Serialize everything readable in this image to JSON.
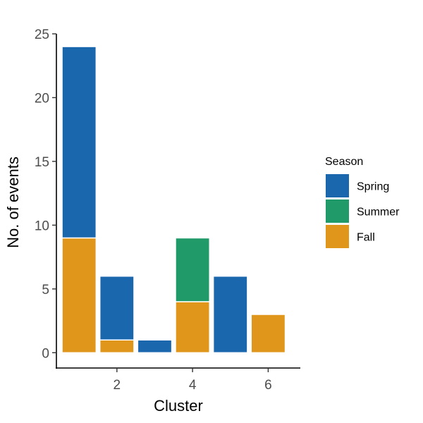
{
  "chart_data": {
    "type": "bar",
    "stacked": true,
    "x": [
      1,
      2,
      3,
      4,
      5,
      6
    ],
    "series": [
      {
        "name": "Fall",
        "color": "#E0961A",
        "values": [
          9,
          1,
          0,
          4,
          0,
          3
        ]
      },
      {
        "name": "Summer",
        "color": "#219A6A",
        "values": [
          0,
          0,
          0,
          5,
          0,
          0
        ]
      },
      {
        "name": "Spring",
        "color": "#1B67AE",
        "values": [
          15,
          5,
          1,
          0,
          6,
          0
        ]
      }
    ],
    "xlabel": "Cluster",
    "ylabel": "No. of events",
    "x_ticks": [
      2,
      4,
      6
    ],
    "y_ticks": [
      0,
      5,
      10,
      15,
      20,
      25
    ],
    "xlim": [
      0.4,
      6.85
    ],
    "ylim": [
      -1.2,
      25
    ],
    "grid": false,
    "legend": {
      "title": "Season",
      "placement": "right",
      "entries": [
        {
          "label": "Spring",
          "color": "#1B67AE"
        },
        {
          "label": "Summer",
          "color": "#219A6A"
        },
        {
          "label": "Fall",
          "color": "#E0961A"
        }
      ]
    }
  }
}
